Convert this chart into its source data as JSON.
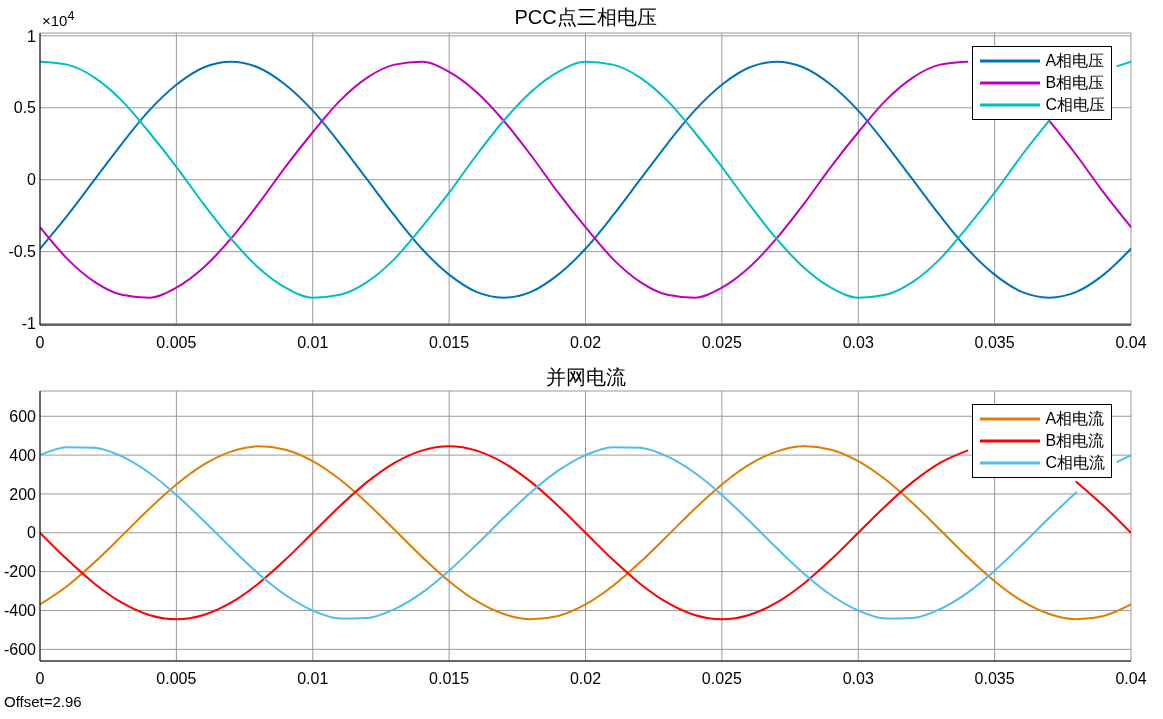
{
  "chart_data": [
    {
      "type": "line",
      "title": "PCC点三相电压",
      "annotations": [
        "×10$^{4}$"
      ],
      "x": [
        0,
        0.001,
        0.002,
        0.003,
        0.004,
        0.005,
        0.006,
        0.007,
        0.008,
        0.009,
        0.01,
        0.011,
        0.012,
        0.013,
        0.014,
        0.015,
        0.016,
        0.017,
        0.018,
        0.019,
        0.02,
        0.021,
        0.022,
        0.023,
        0.024,
        0.025,
        0.026,
        0.027,
        0.028,
        0.029,
        0.03,
        0.031,
        0.032,
        0.033,
        0.034,
        0.035,
        0.036,
        0.037,
        0.038,
        0.039,
        0.04
      ],
      "xlim": [
        0,
        0.04
      ],
      "xticks": [
        0,
        0.005,
        0.01,
        0.015,
        0.02,
        0.025,
        0.03,
        0.035,
        0.04
      ],
      "ylim": [
        -1.01,
        1.02
      ],
      "yticks": [
        -1,
        -0.5,
        0,
        0.5,
        1
      ],
      "grid": true,
      "legend": "top right",
      "marker": "none",
      "line_style": "solid",
      "series": [
        {
          "name": "A相电压",
          "color": "#0072bd",
          "values": [
            -0.48,
            -0.25,
            0,
            0.25,
            0.48,
            0.66,
            0.78,
            0.82,
            0.78,
            0.66,
            0.48,
            0.25,
            0,
            -0.25,
            -0.48,
            -0.66,
            -0.78,
            -0.82,
            -0.78,
            -0.66,
            -0.48,
            -0.25,
            0,
            0.25,
            0.48,
            0.66,
            0.78,
            0.82,
            0.78,
            0.66,
            0.48,
            0.25,
            0,
            -0.25,
            -0.48,
            -0.66,
            -0.78,
            -0.82,
            -0.78,
            -0.66,
            -0.48
          ]
        },
        {
          "name": "B相电压",
          "color": "#c000c0",
          "values": [
            -0.33,
            -0.55,
            -0.71,
            -0.8,
            -0.82,
            -0.75,
            -0.61,
            -0.41,
            -0.17,
            0.09,
            0.33,
            0.55,
            0.71,
            0.8,
            0.82,
            0.75,
            0.61,
            0.41,
            0.17,
            -0.09,
            -0.33,
            -0.55,
            -0.71,
            -0.8,
            -0.82,
            -0.75,
            -0.61,
            -0.41,
            -0.17,
            0.09,
            0.33,
            0.55,
            0.71,
            0.8,
            0.82,
            null,
            null,
            0.41,
            0.17,
            -0.09,
            -0.33
          ]
        },
        {
          "name": "C相电压",
          "color": "#00bfbf",
          "x": [
            0,
            0.001,
            0.002,
            0.003,
            0.004,
            0.005,
            0.006,
            0.007,
            0.008,
            0.009,
            0.01,
            0.011,
            0.012,
            0.013,
            0.014,
            0.015,
            0.016,
            0.017,
            0.018,
            0.019,
            0.02,
            0.021,
            0.022,
            0.023,
            0.024,
            0.025,
            0.026,
            0.027,
            0.028,
            0.029,
            0.03,
            0.031,
            0.032,
            0.033,
            0.034,
            0.035,
            0.036,
            0.037,
            0.038,
            0.039,
            0.0395,
            0.04
          ],
          "values": [
            0.82,
            0.8,
            0.71,
            0.55,
            0.33,
            0.09,
            -0.17,
            -0.41,
            -0.61,
            -0.75,
            -0.82,
            -0.8,
            -0.71,
            -0.55,
            -0.33,
            -0.09,
            0.17,
            0.41,
            0.61,
            0.75,
            0.82,
            0.8,
            0.71,
            0.55,
            0.33,
            0.09,
            -0.17,
            -0.41,
            -0.61,
            -0.75,
            -0.82,
            -0.8,
            -0.71,
            -0.55,
            -0.33,
            -0.09,
            0.17,
            0.41,
            null,
            null,
            0.79,
            0.82
          ]
        }
      ]
    },
    {
      "type": "line",
      "title": "并网电流",
      "annotations": [
        "Offset=2.96"
      ],
      "x": [
        0,
        0.001,
        0.002,
        0.003,
        0.004,
        0.005,
        0.006,
        0.007,
        0.008,
        0.009,
        0.01,
        0.011,
        0.012,
        0.013,
        0.014,
        0.015,
        0.016,
        0.017,
        0.018,
        0.019,
        0.02,
        0.021,
        0.022,
        0.023,
        0.024,
        0.025,
        0.026,
        0.027,
        0.028,
        0.029,
        0.03,
        0.031,
        0.032,
        0.033,
        0.034,
        0.035,
        0.036,
        0.037,
        0.038,
        0.039,
        0.04
      ],
      "xlim": [
        0,
        0.04
      ],
      "xticks": [
        0,
        0.005,
        0.01,
        0.015,
        0.02,
        0.025,
        0.03,
        0.035,
        0.04
      ],
      "ylim": [
        -660,
        730
      ],
      "yticks": [
        -600,
        -400,
        -200,
        0,
        200,
        400,
        600
      ],
      "grid": true,
      "legend": "top right",
      "marker": "none",
      "line_style": "solid",
      "series": [
        {
          "name": "A相电流",
          "color": "#de7d00",
          "values": [
            -369,
            -274,
            -152,
            -16,
            123,
            249,
            351,
            418,
            445,
            428,
            369,
            274,
            152,
            16,
            -123,
            -249,
            -351,
            -418,
            -445,
            -428,
            -369,
            -274,
            -152,
            -16,
            123,
            249,
            351,
            418,
            445,
            428,
            369,
            274,
            152,
            16,
            -123,
            -249,
            -351,
            -418,
            -445,
            -428,
            -369
          ]
        },
        {
          "name": "B相电流",
          "color": "#ff0000",
          "values": [
            0,
            -138,
            -262,
            -360,
            -423,
            -445,
            -423,
            -360,
            -262,
            -138,
            0,
            138,
            262,
            360,
            423,
            445,
            423,
            360,
            262,
            138,
            0,
            -138,
            -262,
            -360,
            -423,
            -445,
            -423,
            -360,
            -262,
            -138,
            0,
            138,
            262,
            360,
            423,
            null,
            null,
            null,
            262,
            138,
            0
          ]
        },
        {
          "name": "C相电流",
          "color": "#4dbeee",
          "x": [
            0,
            0.001,
            0.002,
            0.003,
            0.004,
            0.005,
            0.006,
            0.007,
            0.008,
            0.009,
            0.01,
            0.011,
            0.012,
            0.013,
            0.014,
            0.015,
            0.016,
            0.017,
            0.018,
            0.019,
            0.02,
            0.021,
            0.022,
            0.023,
            0.024,
            0.025,
            0.026,
            0.027,
            0.028,
            0.029,
            0.03,
            0.031,
            0.032,
            0.033,
            0.034,
            0.035,
            0.036,
            0.037,
            0.038,
            0.039,
            0.0395,
            0.04
          ],
          "values": [
            400,
            441,
            438,
            393,
            309,
            195,
            62,
            -77,
            -209,
            -320,
            -400,
            -441,
            -438,
            -393,
            -309,
            -195,
            -62,
            77,
            209,
            320,
            400,
            441,
            438,
            393,
            309,
            195,
            62,
            -77,
            -209,
            -320,
            -400,
            -441,
            -438,
            -393,
            -309,
            -195,
            -62,
            77,
            209,
            null,
            365,
            400
          ]
        }
      ]
    }
  ]
}
